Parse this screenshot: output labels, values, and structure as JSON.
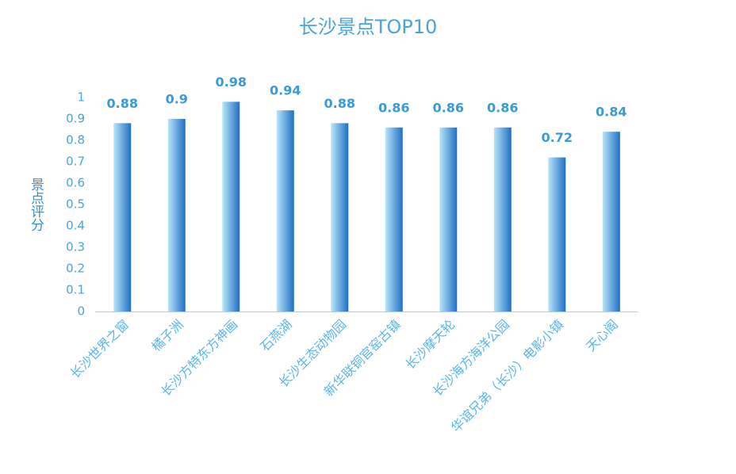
{
  "chart_data": {
    "type": "bar",
    "title": "长沙景点TOP10",
    "y_label": "景点评分",
    "categories": [
      "长沙世界之窗",
      "橘子洲",
      "长沙方特东方神画",
      "石燕湖",
      "长沙生态动物园",
      "新华联铜官窑古镇",
      "长沙摩天轮",
      "长沙海方海洋公园",
      "华谊兄弟（长沙）电影小镇",
      "天心阁"
    ],
    "values": [
      0.88,
      0.9,
      0.98,
      0.94,
      0.88,
      0.86,
      0.86,
      0.86,
      0.72,
      0.84
    ],
    "color": "#1f6fc5",
    "ylim": [
      0,
      1
    ],
    "yticks": [
      0,
      0.1,
      0.2,
      0.3,
      0.4,
      0.5,
      0.6,
      0.7,
      0.8,
      0.9,
      1
    ],
    "grid": false
  }
}
